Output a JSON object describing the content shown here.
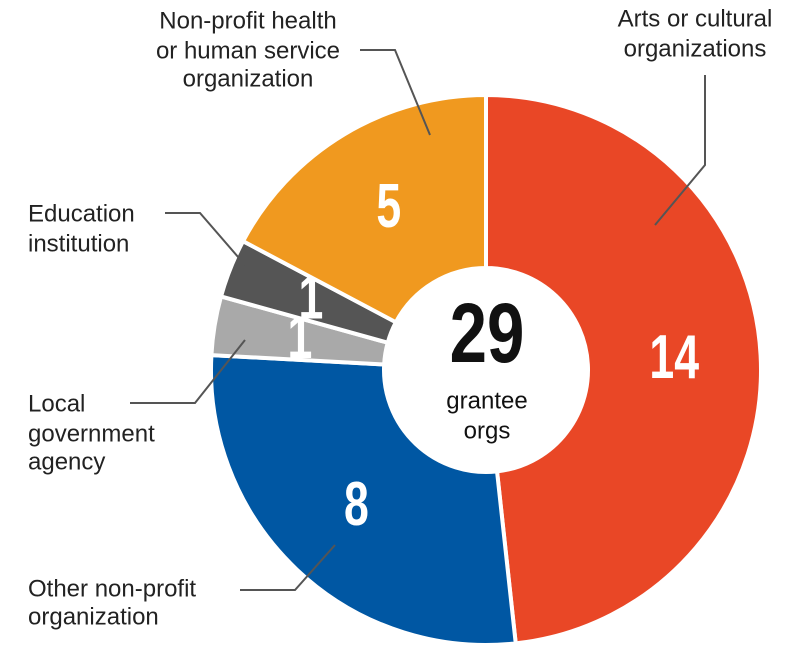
{
  "chart_data": {
    "type": "donut",
    "categories": [
      [
        "Arts or cultural",
        "organizations"
      ],
      [
        "Other non-profit",
        "organization"
      ],
      [
        "Local",
        "government",
        "agency"
      ],
      [
        "Education",
        "institution"
      ],
      [
        "Non-profit health",
        "or human service",
        "organization"
      ]
    ],
    "values": [
      14,
      8,
      1,
      1,
      5
    ],
    "colors": [
      "#e94726",
      "#0057a3",
      "#a9a9a9",
      "#555555",
      "#f0991f"
    ],
    "center_value": 29,
    "center_label": [
      "grantee",
      "orgs"
    ]
  }
}
